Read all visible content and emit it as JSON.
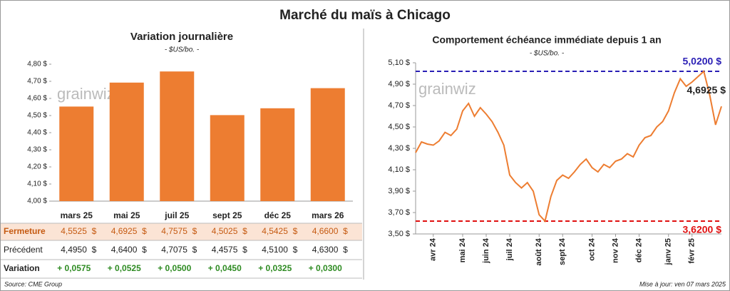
{
  "title": "Marché du maïs à Chicago",
  "watermark": "grainwiz",
  "source": "Source: CME Group",
  "updated": "Mise à jour: ven 07 mars 2025",
  "chart_data": [
    {
      "type": "bar",
      "title": "Variation journalière",
      "subtitle": "- $US/bo. -",
      "color": "#ed7d31",
      "categories": [
        "mars 25",
        "mai 25",
        "juil 25",
        "sept 25",
        "déc 25",
        "mars 26"
      ],
      "values": [
        4.5525,
        4.6925,
        4.7575,
        4.5025,
        4.5425,
        4.66
      ],
      "value_labels": [
        "4,5525  $",
        "4,6925  $",
        "4,7575  $",
        "4,5025  $",
        "4,5425  $",
        "4,6600  $"
      ],
      "ylim": [
        4.0,
        4.8
      ],
      "yticks": [
        {
          "value": 4.0,
          "label": "4,00 $"
        },
        {
          "value": 4.1,
          "label": "4,10 $"
        },
        {
          "value": 4.2,
          "label": "4,20 $"
        },
        {
          "value": 4.3,
          "label": "4,30 $"
        },
        {
          "value": 4.4,
          "label": "4,40 $"
        },
        {
          "value": 4.5,
          "label": "4,50 $"
        },
        {
          "value": 4.6,
          "label": "4,60 $"
        },
        {
          "value": 4.7,
          "label": "4,70 $"
        },
        {
          "value": 4.8,
          "label": "4,80 $"
        }
      ]
    },
    {
      "type": "line",
      "title": "Comportement échéance immédiate depuis 1 an",
      "subtitle": "- $US/bo. -",
      "color": "#ed7d31",
      "x": [
        null,
        null,
        null,
        "avr 24",
        null,
        null,
        null,
        null,
        "mai 24",
        null,
        null,
        null,
        "juin 24",
        null,
        null,
        null,
        "juil 24",
        null,
        null,
        null,
        null,
        "août 24",
        null,
        null,
        null,
        "sept 24",
        null,
        null,
        null,
        null,
        "oct 24",
        null,
        null,
        null,
        "nov 24",
        null,
        null,
        null,
        "déc 24",
        null,
        null,
        null,
        null,
        "janv 25",
        null,
        null,
        null,
        "févr 25",
        null,
        null,
        null,
        null,
        null
      ],
      "values": [
        4.26,
        4.36,
        4.34,
        4.33,
        4.37,
        4.45,
        4.42,
        4.48,
        4.65,
        4.72,
        4.6,
        4.68,
        4.62,
        4.55,
        4.45,
        4.33,
        4.05,
        3.98,
        3.93,
        3.98,
        3.9,
        3.68,
        3.62,
        3.85,
        4.0,
        4.05,
        4.02,
        4.08,
        4.15,
        4.2,
        4.12,
        4.08,
        4.15,
        4.12,
        4.18,
        4.2,
        4.25,
        4.22,
        4.33,
        4.4,
        4.42,
        4.5,
        4.55,
        4.65,
        4.82,
        4.95,
        4.88,
        4.92,
        4.97,
        5.02,
        4.8,
        4.52,
        4.6925
      ],
      "ylim": [
        3.5,
        5.1
      ],
      "yticks": [
        {
          "value": 3.5,
          "label": "3,50 $"
        },
        {
          "value": 3.7,
          "label": "3,70 $"
        },
        {
          "value": 3.9,
          "label": "3,90 $"
        },
        {
          "value": 4.1,
          "label": "4,10 $"
        },
        {
          "value": 4.3,
          "label": "4,30 $"
        },
        {
          "value": 4.5,
          "label": "4,50 $"
        },
        {
          "value": 4.7,
          "label": "4,70 $"
        },
        {
          "value": 4.9,
          "label": "4,90 $"
        },
        {
          "value": 5.1,
          "label": "5,10 $"
        }
      ],
      "reference_lines": [
        {
          "value": 5.02,
          "label": "5,0200 $",
          "color": "#2a1fb5"
        },
        {
          "value": 3.62,
          "label": "3,6200 $",
          "color": "#e01010"
        }
      ],
      "last_label": {
        "value": 4.6925,
        "label": "4,6925 $"
      }
    }
  ],
  "table": {
    "rows": [
      {
        "label": "Fermeture"
      },
      {
        "label": "Précédent",
        "cells": [
          "4,4950  $",
          "4,6400  $",
          "4,7075  $",
          "4,4575  $",
          "4,5100  $",
          "4,6300  $"
        ]
      },
      {
        "label": "Variation",
        "cells": [
          "+ 0,0575",
          "+ 0,0525",
          "+ 0,0500",
          "+ 0,0450",
          "+ 0,0325",
          "+ 0,0300"
        ]
      }
    ]
  }
}
